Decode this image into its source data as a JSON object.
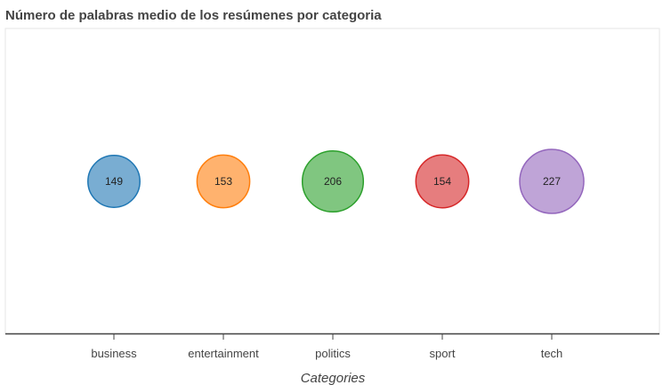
{
  "chart_data": {
    "type": "scatter",
    "title": "Número de palabras medio de los resúmenes por categoria",
    "xlabel": "Categories",
    "ylabel": "",
    "categories": [
      "business",
      "entertainment",
      "politics",
      "sport",
      "tech"
    ],
    "values": [
      149,
      153,
      206,
      154,
      227
    ],
    "labels": [
      "149",
      "153",
      "206",
      "154",
      "227"
    ],
    "colors": [
      "#1f77b4",
      "#ff7f0e",
      "#2ca02c",
      "#d62728",
      "#9467bd"
    ],
    "encoding": "bubble area proportional to value",
    "grid": false,
    "legend": "none"
  }
}
